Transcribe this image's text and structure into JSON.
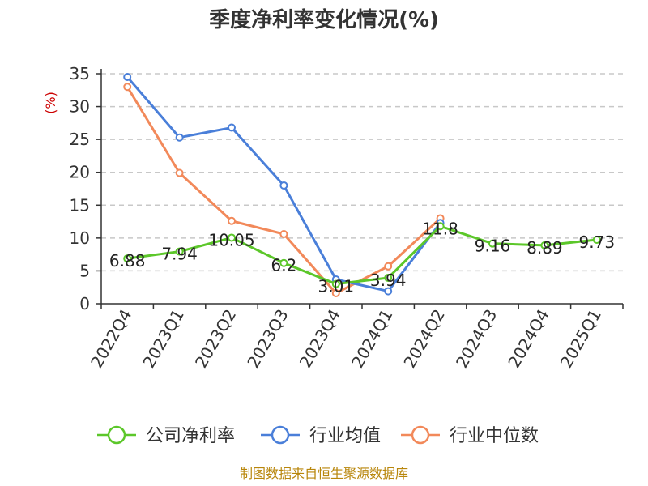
{
  "chart_data": {
    "type": "line",
    "title": "季度净利率变化情况(%)",
    "ylabel": "(%)",
    "categories": [
      "2022Q4",
      "2023Q1",
      "2023Q2",
      "2023Q3",
      "2023Q4",
      "2024Q1",
      "2024Q2",
      "2024Q3",
      "2024Q4",
      "2025Q1"
    ],
    "ylim": [
      0,
      35
    ],
    "yticks": [
      0,
      5,
      10,
      15,
      20,
      25,
      30,
      35
    ],
    "grid": true,
    "legend_position": "bottom",
    "series": [
      {
        "name": "公司净利率",
        "color": "#5cc72a",
        "values": [
          6.88,
          7.94,
          10.05,
          6.2,
          3.01,
          3.94,
          11.8,
          9.16,
          8.89,
          9.73
        ],
        "labels": [
          "6.88",
          "7.94",
          "10.05",
          "6.2",
          "3.01",
          "3.94",
          "11.8",
          "9.16",
          "8.89",
          "9.73"
        ]
      },
      {
        "name": "行业均值",
        "color": "#4a7fd9",
        "values": [
          34.5,
          25.3,
          26.8,
          18.0,
          3.7,
          1.9,
          12.3,
          null,
          null,
          null
        ]
      },
      {
        "name": "行业中位数",
        "color": "#f2895a",
        "values": [
          33.0,
          19.9,
          12.6,
          10.6,
          1.6,
          5.7,
          13.0,
          null,
          null,
          null
        ]
      }
    ]
  },
  "source": "制图数据来自恒生聚源数据库"
}
